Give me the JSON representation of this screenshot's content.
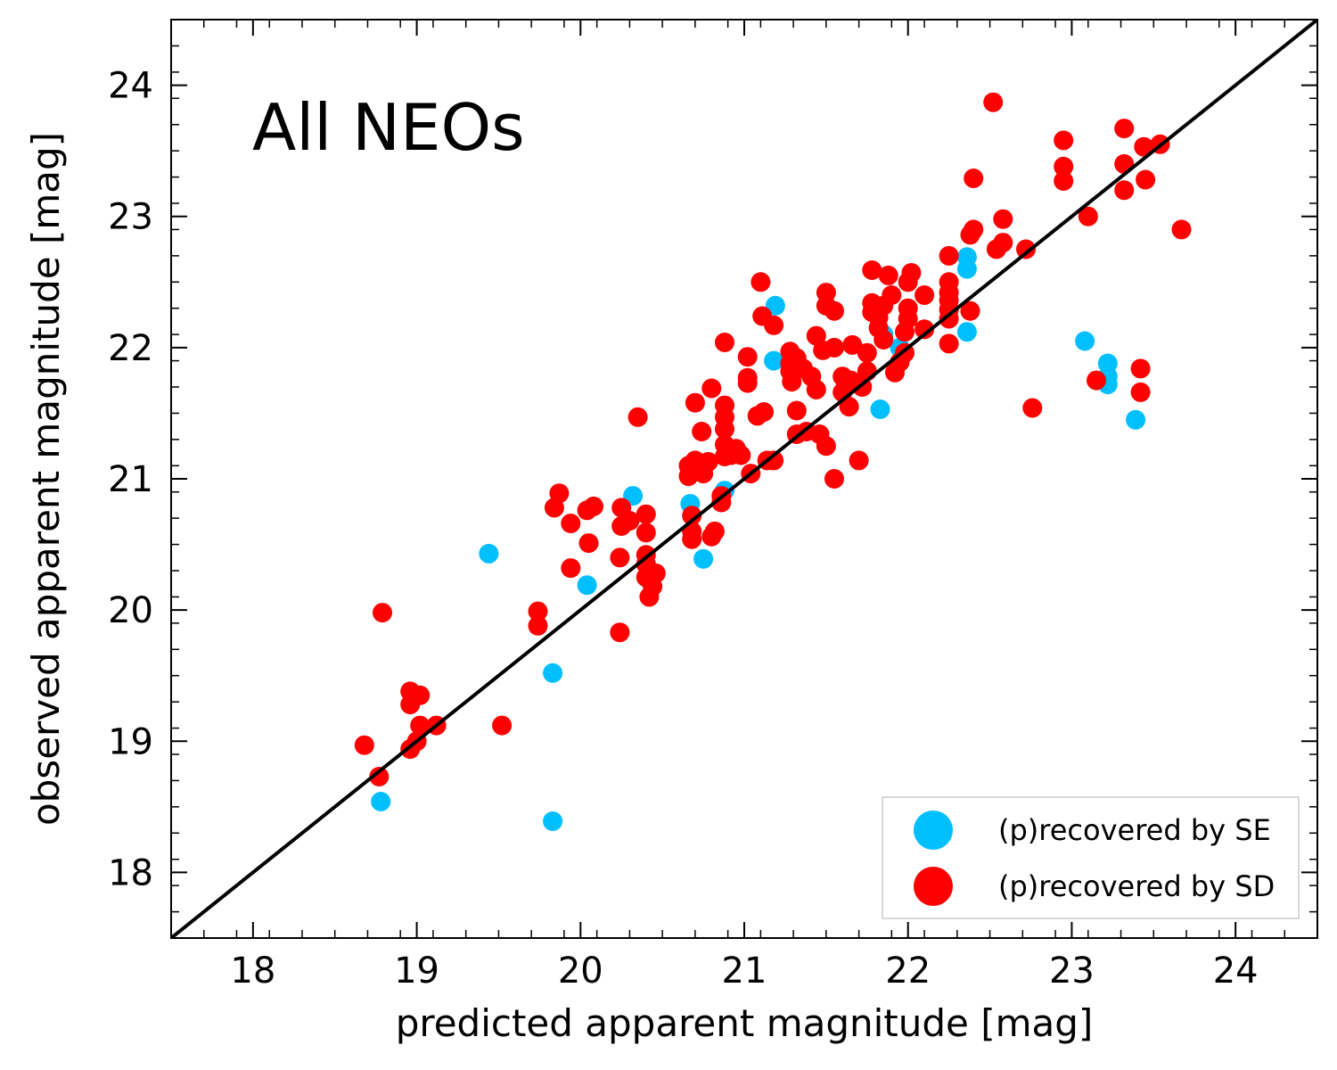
{
  "chart_data": {
    "type": "scatter",
    "title": "All NEOs",
    "xlabel": "predicted apparent magnitude [mag]",
    "ylabel": "observed apparent magnitude [mag]",
    "xlim": [
      17.5,
      24.5
    ],
    "ylim": [
      17.5,
      24.5
    ],
    "xticks": [
      18,
      19,
      20,
      21,
      22,
      23,
      24
    ],
    "yticks": [
      18,
      19,
      20,
      21,
      22,
      23,
      24
    ],
    "xtick_labels": [
      "18",
      "19",
      "20",
      "21",
      "22",
      "23",
      "24"
    ],
    "ytick_labels": [
      "18",
      "19",
      "20",
      "21",
      "22",
      "23",
      "24"
    ],
    "minor_tick_step": 0.2,
    "grid": false,
    "legend_position": "lower-right",
    "reference_line": {
      "name": "one-to-one",
      "from": [
        17.5,
        17.5
      ],
      "to": [
        24.5,
        24.5
      ],
      "color": "#000000"
    },
    "series": [
      {
        "name": "(p)recovered by SE",
        "color": "#00bfff",
        "points": [
          [
            18.78,
            18.54
          ],
          [
            19.83,
            18.39
          ],
          [
            19.83,
            19.52
          ],
          [
            19.44,
            20.43
          ],
          [
            20.04,
            20.19
          ],
          [
            20.32,
            20.87
          ],
          [
            20.67,
            20.81
          ],
          [
            20.75,
            20.39
          ],
          [
            20.88,
            20.91
          ],
          [
            21.19,
            22.32
          ],
          [
            21.18,
            21.9
          ],
          [
            21.83,
            21.53
          ],
          [
            21.85,
            22.1
          ],
          [
            21.95,
            22.0
          ],
          [
            22.36,
            22.12
          ],
          [
            22.36,
            22.6
          ],
          [
            22.36,
            22.69
          ],
          [
            23.08,
            22.05
          ],
          [
            23.22,
            21.88
          ],
          [
            23.22,
            21.78
          ],
          [
            23.22,
            21.72
          ],
          [
            23.39,
            21.45
          ]
        ]
      },
      {
        "name": "(p)recovered by SD",
        "color": "#ff0000",
        "points": [
          [
            18.68,
            18.97
          ],
          [
            18.77,
            18.73
          ],
          [
            18.79,
            19.98
          ],
          [
            18.96,
            19.38
          ],
          [
            18.96,
            19.28
          ],
          [
            18.96,
            18.94
          ],
          [
            19.0,
            19.0
          ],
          [
            19.02,
            19.35
          ],
          [
            19.02,
            19.12
          ],
          [
            19.12,
            19.12
          ],
          [
            19.52,
            19.12
          ],
          [
            19.74,
            19.99
          ],
          [
            19.74,
            19.88
          ],
          [
            19.84,
            20.78
          ],
          [
            19.87,
            20.89
          ],
          [
            19.94,
            20.66
          ],
          [
            19.94,
            20.32
          ],
          [
            20.04,
            20.76
          ],
          [
            20.05,
            20.51
          ],
          [
            20.08,
            20.79
          ],
          [
            20.24,
            19.83
          ],
          [
            20.24,
            20.4
          ],
          [
            20.25,
            20.78
          ],
          [
            20.25,
            20.64
          ],
          [
            20.3,
            20.68
          ],
          [
            20.35,
            21.47
          ],
          [
            20.4,
            20.73
          ],
          [
            20.4,
            20.59
          ],
          [
            20.4,
            20.42
          ],
          [
            20.4,
            20.35
          ],
          [
            20.4,
            20.25
          ],
          [
            20.42,
            20.1
          ],
          [
            20.44,
            20.18
          ],
          [
            20.46,
            20.28
          ],
          [
            20.66,
            21.1
          ],
          [
            20.66,
            21.02
          ],
          [
            20.68,
            20.72
          ],
          [
            20.68,
            20.6
          ],
          [
            20.68,
            20.54
          ],
          [
            20.7,
            21.14
          ],
          [
            20.7,
            21.58
          ],
          [
            20.74,
            21.36
          ],
          [
            20.75,
            21.04
          ],
          [
            20.78,
            21.13
          ],
          [
            20.8,
            20.56
          ],
          [
            20.8,
            21.69
          ],
          [
            20.82,
            20.6
          ],
          [
            20.86,
            20.82
          ],
          [
            20.86,
            20.87
          ],
          [
            20.88,
            21.56
          ],
          [
            20.88,
            21.47
          ],
          [
            20.88,
            21.38
          ],
          [
            20.88,
            21.26
          ],
          [
            20.88,
            21.17
          ],
          [
            20.88,
            22.04
          ],
          [
            20.92,
            21.18
          ],
          [
            20.95,
            21.23
          ],
          [
            20.98,
            21.18
          ],
          [
            21.02,
            21.93
          ],
          [
            21.02,
            21.77
          ],
          [
            21.02,
            21.73
          ],
          [
            21.04,
            21.04
          ],
          [
            21.08,
            21.48
          ],
          [
            21.1,
            22.5
          ],
          [
            21.11,
            22.24
          ],
          [
            21.12,
            21.51
          ],
          [
            21.14,
            21.14
          ],
          [
            21.18,
            21.14
          ],
          [
            21.18,
            22.17
          ],
          [
            21.28,
            21.97
          ],
          [
            21.28,
            21.88
          ],
          [
            21.28,
            21.82
          ],
          [
            21.29,
            21.74
          ],
          [
            21.32,
            21.92
          ],
          [
            21.32,
            21.52
          ],
          [
            21.32,
            21.34
          ],
          [
            21.36,
            21.84
          ],
          [
            21.38,
            21.36
          ],
          [
            21.41,
            21.78
          ],
          [
            21.44,
            21.68
          ],
          [
            21.44,
            22.09
          ],
          [
            21.46,
            21.34
          ],
          [
            21.48,
            21.98
          ],
          [
            21.5,
            22.42
          ],
          [
            21.5,
            22.32
          ],
          [
            21.5,
            21.25
          ],
          [
            21.55,
            22.28
          ],
          [
            21.55,
            21.0
          ],
          [
            21.55,
            22.0
          ],
          [
            21.6,
            21.78
          ],
          [
            21.6,
            21.66
          ],
          [
            21.62,
            21.71
          ],
          [
            21.64,
            21.55
          ],
          [
            21.65,
            21.75
          ],
          [
            21.66,
            22.02
          ],
          [
            21.7,
            21.14
          ],
          [
            21.72,
            21.7
          ],
          [
            21.75,
            21.82
          ],
          [
            21.75,
            21.96
          ],
          [
            21.78,
            22.59
          ],
          [
            21.78,
            22.34
          ],
          [
            21.78,
            22.27
          ],
          [
            21.82,
            22.23
          ],
          [
            21.82,
            22.15
          ],
          [
            21.85,
            22.06
          ],
          [
            21.85,
            22.32
          ],
          [
            21.88,
            22.55
          ],
          [
            21.9,
            22.4
          ],
          [
            21.92,
            21.81
          ],
          [
            21.95,
            21.89
          ],
          [
            21.98,
            22.12
          ],
          [
            21.98,
            21.96
          ],
          [
            22.0,
            22.3
          ],
          [
            22.0,
            22.22
          ],
          [
            22.0,
            22.5
          ],
          [
            22.02,
            22.57
          ],
          [
            22.1,
            22.4
          ],
          [
            22.1,
            22.14
          ],
          [
            22.25,
            22.7
          ],
          [
            22.25,
            22.5
          ],
          [
            22.25,
            22.42
          ],
          [
            22.25,
            22.36
          ],
          [
            22.25,
            22.29
          ],
          [
            22.25,
            22.22
          ],
          [
            22.25,
            22.03
          ],
          [
            22.38,
            22.28
          ],
          [
            22.38,
            22.86
          ],
          [
            22.4,
            22.9
          ],
          [
            22.4,
            23.29
          ],
          [
            22.52,
            23.87
          ],
          [
            22.54,
            22.75
          ],
          [
            22.58,
            22.8
          ],
          [
            22.58,
            22.98
          ],
          [
            22.72,
            22.75
          ],
          [
            22.76,
            21.54
          ],
          [
            22.95,
            23.58
          ],
          [
            22.95,
            23.38
          ],
          [
            22.95,
            23.27
          ],
          [
            23.1,
            23.0
          ],
          [
            23.15,
            21.75
          ],
          [
            23.32,
            23.67
          ],
          [
            23.32,
            23.4
          ],
          [
            23.32,
            23.2
          ],
          [
            23.42,
            21.84
          ],
          [
            23.42,
            21.66
          ],
          [
            23.44,
            23.53
          ],
          [
            23.45,
            23.28
          ],
          [
            23.54,
            23.55
          ],
          [
            23.67,
            22.9
          ]
        ]
      }
    ]
  }
}
